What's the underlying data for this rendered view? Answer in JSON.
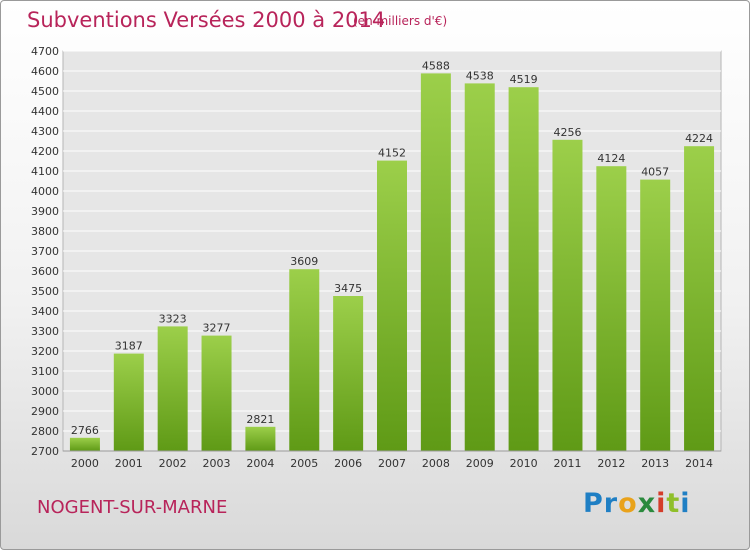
{
  "chart_data": {
    "type": "bar",
    "title": "Subventions Versées 2000 à 2014",
    "subtitle": "(en milliers d'€)",
    "categories": [
      "2000",
      "2001",
      "2002",
      "2003",
      "2004",
      "2005",
      "2006",
      "2007",
      "2008",
      "2009",
      "2010",
      "2011",
      "2012",
      "2013",
      "2014"
    ],
    "values": [
      2766,
      3187,
      3323,
      3277,
      2821,
      3609,
      3475,
      4152,
      4588,
      4538,
      4519,
      4256,
      4124,
      4057,
      4224
    ],
    "ylim": [
      2700,
      4700
    ],
    "yticks": [
      2700,
      2800,
      2900,
      3000,
      3100,
      3200,
      3300,
      3400,
      3500,
      3600,
      3700,
      3800,
      3900,
      4000,
      4100,
      4200,
      4300,
      4400,
      4500,
      4600,
      4700
    ],
    "grid": true,
    "colors": {
      "bar_top": "#9ccf4a",
      "bar_bottom": "#5f9a16",
      "text": "#b8245a"
    }
  },
  "footer": {
    "commune": "NOGENT-SUR-MARNE",
    "logo": "Proxiti"
  }
}
